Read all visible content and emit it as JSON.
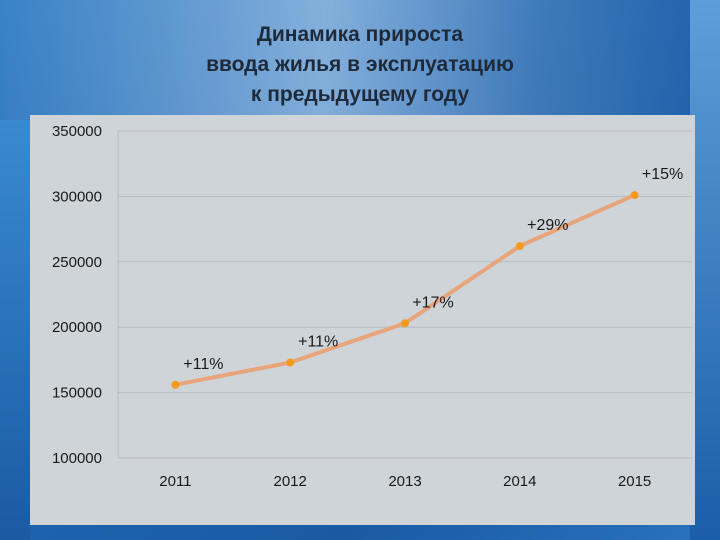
{
  "header": {
    "title_lines": [
      "Динамика прироста",
      "ввода жилья в эксплуатацию",
      "к предыдущему году"
    ]
  },
  "chart_data": {
    "type": "line",
    "title": "Динамика прироста ввода жилья в эксплуатацию к предыдущему году",
    "xlabel": "",
    "ylabel": "",
    "categories": [
      "2011",
      "2012",
      "2013",
      "2014",
      "2015"
    ],
    "series": [
      {
        "values": [
          156000,
          173000,
          203000,
          262000,
          301000
        ],
        "labels": [
          "+11%",
          "+11%",
          "+17%",
          "+29%",
          "+15%"
        ],
        "color": "#e8a47a",
        "marker_color": "#f29a1e"
      }
    ],
    "ylim": [
      100000,
      350000
    ],
    "yticks": [
      100000,
      150000,
      200000,
      250000,
      300000,
      350000
    ],
    "ytick_labels": [
      "100000",
      "150000",
      "200000",
      "250000",
      "300000",
      "350000"
    ],
    "grid": true,
    "legend": "none"
  },
  "colors": {
    "background_blue": "#1d62ad",
    "plot_background": "#cfd4d8",
    "grid_line": "#b8bdc2",
    "line": "#e8a47a",
    "marker": "#f29a1e"
  }
}
